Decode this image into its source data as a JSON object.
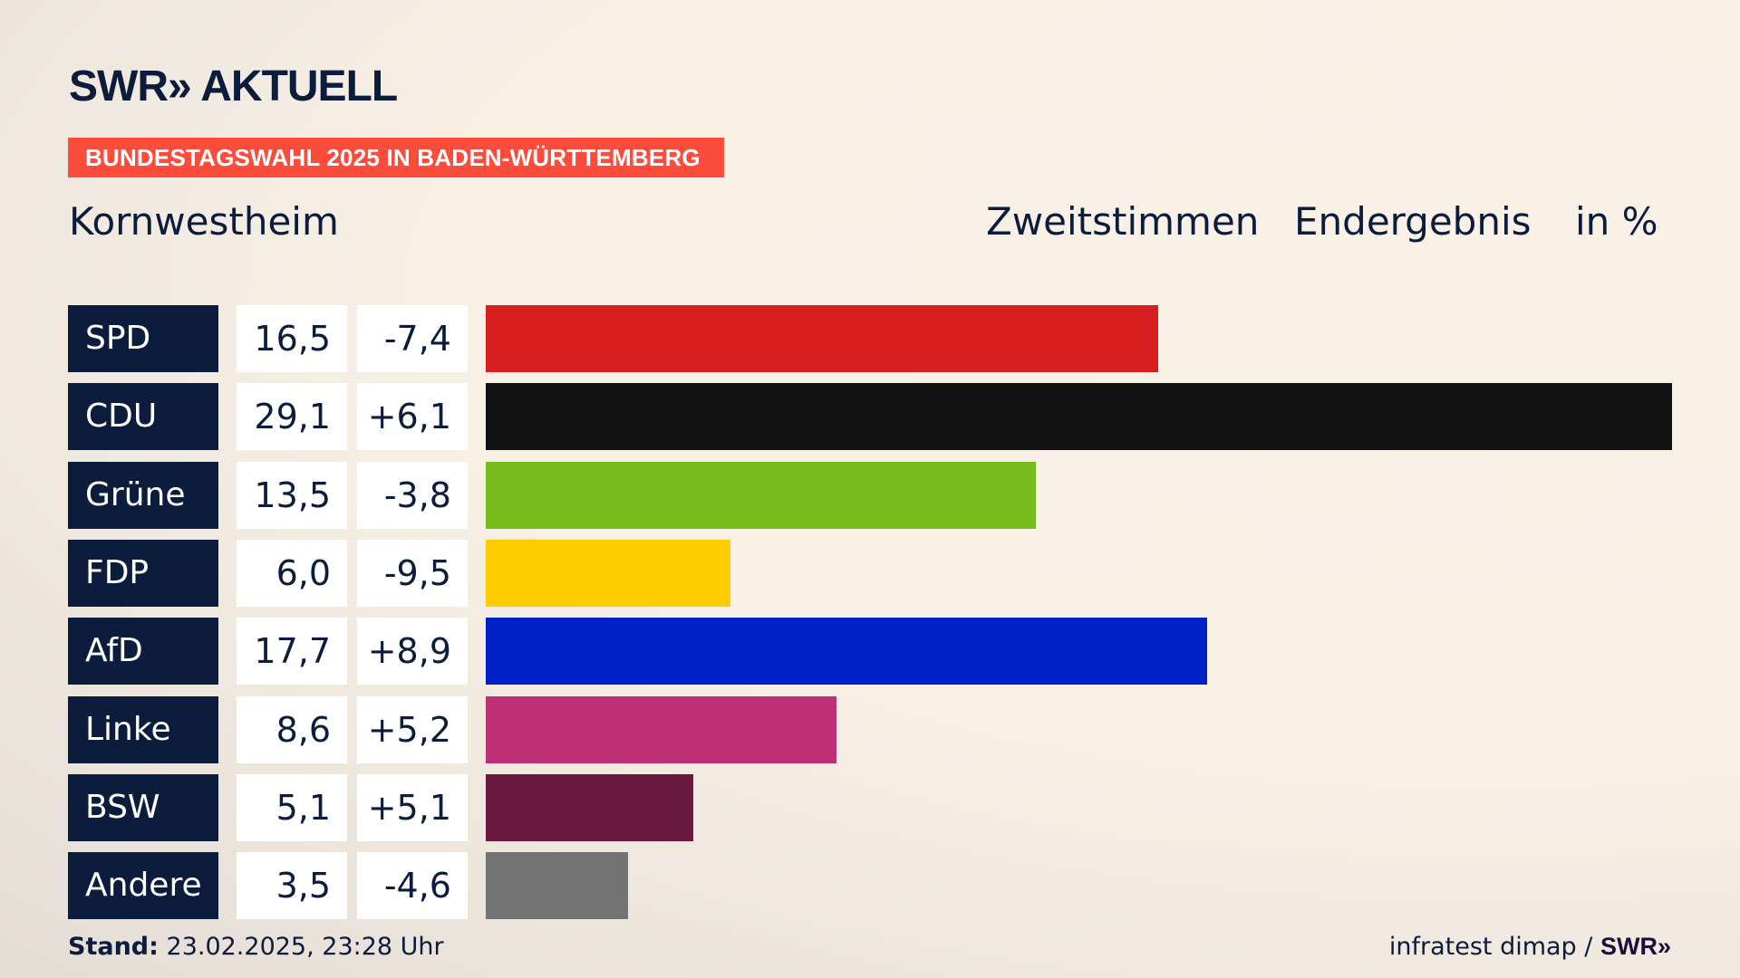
{
  "header": {
    "logo": "SWR» AKTUELL",
    "banner": "BUNDESTAGSWAHL 2025 IN BADEN-WÜRTTEMBERG",
    "place": "Kornwestheim",
    "vote_type": "Zweitstimmen",
    "result": "Endergebnis",
    "unit": "in %"
  },
  "footer": {
    "stand_label": "Stand:",
    "stand_value": "23.02.2025, 23:28 Uhr",
    "source": "infratest dimap /",
    "source_logo": "SWR»"
  },
  "chart_data": {
    "type": "bar",
    "orientation": "horizontal",
    "title": "Kornwestheim – Zweitstimmen Endergebnis in %",
    "categories": [
      "SPD",
      "CDU",
      "Grüne",
      "FDP",
      "AfD",
      "Linke",
      "BSW",
      "Andere"
    ],
    "values": [
      16.5,
      29.1,
      13.5,
      6.0,
      17.7,
      8.6,
      5.1,
      3.5
    ],
    "values_label": [
      "16,5",
      "29,1",
      "13,5",
      "6,0",
      "17,7",
      "8,6",
      "5,1",
      "3,5"
    ],
    "changes_label": [
      "-7,4",
      "+6,1",
      "-3,8",
      "-9,5",
      "+8,9",
      "+5,2",
      "+5,1",
      "-4,6"
    ],
    "changes": [
      -7.4,
      6.1,
      -3.8,
      -9.5,
      8.9,
      5.2,
      5.1,
      -4.6
    ],
    "colors": [
      "#d71f1f",
      "#111111",
      "#78bc1b",
      "#ffcc00",
      "#0021c8",
      "#bd3075",
      "#69183e",
      "#737373"
    ],
    "xlim": [
      0,
      29.1
    ]
  }
}
